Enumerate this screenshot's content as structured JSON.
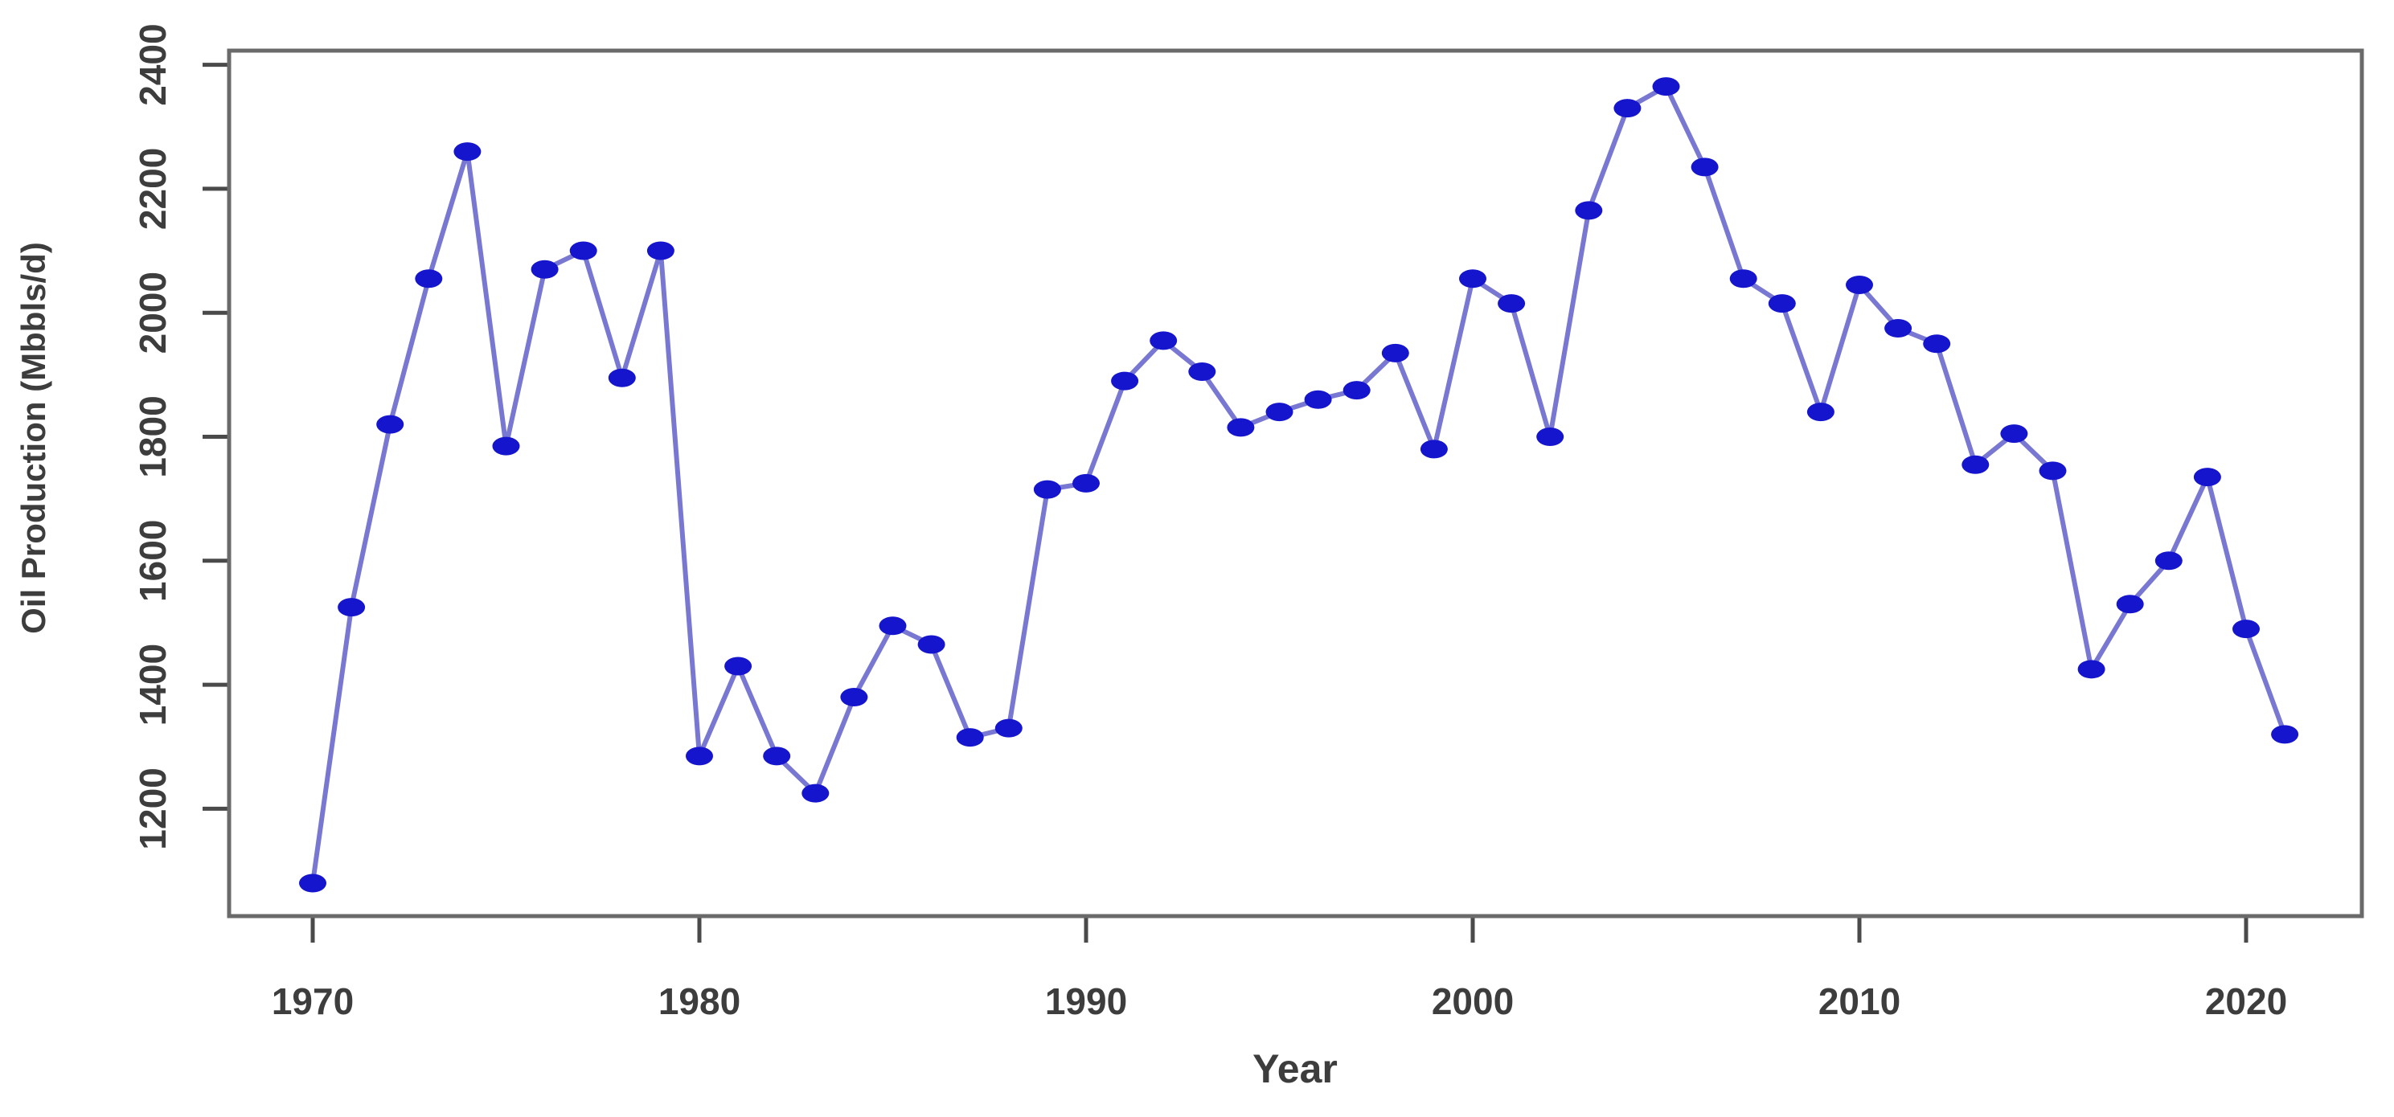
{
  "chart_data": {
    "type": "line",
    "title": "",
    "xlabel": "Year",
    "ylabel": "Oil Production (Mbbls/d)",
    "series_name": "Oil Production",
    "x": [
      1970,
      1971,
      1972,
      1973,
      1974,
      1975,
      1976,
      1977,
      1978,
      1979,
      1980,
      1981,
      1982,
      1983,
      1984,
      1985,
      1986,
      1987,
      1988,
      1989,
      1990,
      1991,
      1992,
      1993,
      1994,
      1995,
      1996,
      1997,
      1998,
      1999,
      2000,
      2001,
      2002,
      2003,
      2004,
      2005,
      2006,
      2007,
      2008,
      2009,
      2010,
      2011,
      2012,
      2013,
      2014,
      2015,
      2016,
      2017,
      2018,
      2019,
      2020,
      2021
    ],
    "values": [
      1080,
      1525,
      1820,
      2055,
      2260,
      1785,
      2070,
      2100,
      1895,
      2100,
      1285,
      1430,
      1285,
      1225,
      1380,
      1495,
      1465,
      1315,
      1330,
      1715,
      1725,
      1890,
      1955,
      1905,
      1815,
      1840,
      1860,
      1875,
      1935,
      1780,
      2055,
      2015,
      1800,
      2165,
      2330,
      2365,
      2235,
      2055,
      2015,
      1840,
      2045,
      1975,
      1950,
      1755,
      1805,
      1745,
      1425,
      1530,
      1600,
      1735,
      1490,
      1320
    ],
    "xticks": [
      1970,
      1980,
      1990,
      2000,
      2010,
      2020
    ],
    "yticks": [
      1200,
      1400,
      1600,
      1800,
      2000,
      2200,
      2400
    ],
    "xlim": [
      1967.9,
      2023.1
    ],
    "ylim": [
      1025,
      2420
    ],
    "grid": false,
    "legend": null,
    "line_color": "#7878d2",
    "point_color": "#1515cd",
    "frame_color": "#6a6a6a",
    "tick_color": "#4a4a4a",
    "label_color": "#3d3d3d",
    "background_color": "#ffffff"
  }
}
